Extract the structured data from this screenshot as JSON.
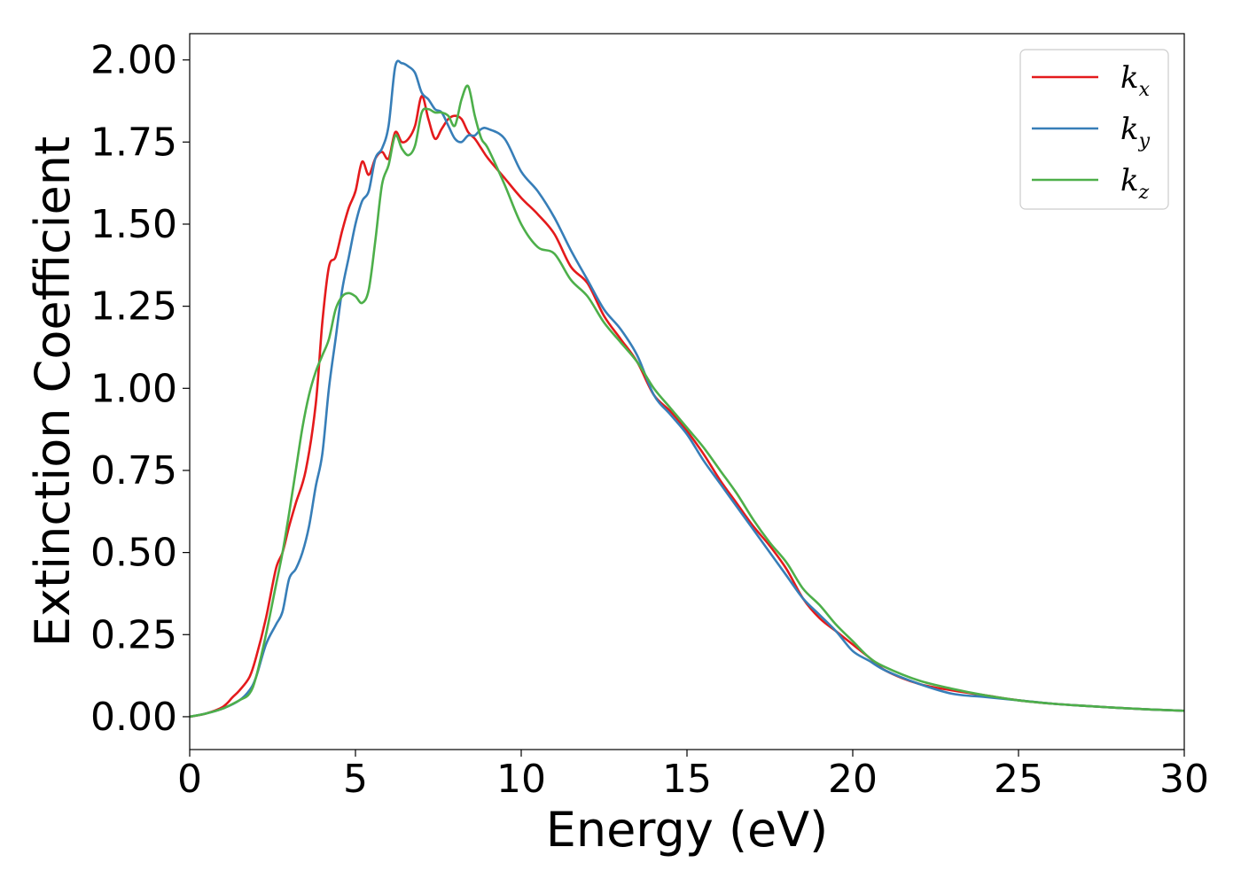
{
  "chart_data": {
    "type": "line",
    "xlabel": "Energy (eV)",
    "ylabel": "Extinction Coefficient",
    "xlim": [
      0,
      30
    ],
    "ylim": [
      -0.1,
      2.08
    ],
    "xticks": [
      0,
      5,
      10,
      15,
      20,
      25,
      30
    ],
    "xtick_labels": [
      "0",
      "5",
      "10",
      "15",
      "20",
      "25",
      "30"
    ],
    "yticks": [
      0.0,
      0.25,
      0.5,
      0.75,
      1.0,
      1.25,
      1.5,
      1.75,
      2.0
    ],
    "ytick_labels": [
      "0.00",
      "0.25",
      "0.50",
      "0.75",
      "1.00",
      "1.25",
      "1.50",
      "1.75",
      "2.00"
    ],
    "grid": false,
    "legend_position": "top-right",
    "series": [
      {
        "name": "k_x",
        "legend_base": "k",
        "legend_sub": "x",
        "color": "#e41a1c",
        "x": [
          0,
          0.5,
          1.0,
          1.3,
          1.5,
          1.8,
          2.0,
          2.3,
          2.6,
          2.8,
          3.0,
          3.2,
          3.5,
          3.8,
          4.0,
          4.2,
          4.4,
          4.6,
          4.8,
          5.0,
          5.2,
          5.4,
          5.6,
          5.8,
          6.0,
          6.2,
          6.4,
          6.6,
          6.8,
          7.0,
          7.2,
          7.4,
          7.6,
          7.8,
          8.0,
          8.2,
          8.4,
          8.6,
          8.8,
          9.0,
          9.5,
          10.0,
          10.5,
          11.0,
          11.5,
          12.0,
          12.5,
          13.0,
          13.5,
          14.0,
          14.5,
          15.0,
          15.5,
          16.0,
          16.5,
          17.0,
          17.5,
          18.0,
          18.5,
          19.0,
          19.5,
          20.0,
          20.5,
          21.0,
          22.0,
          23.0,
          24.0,
          25.0,
          26.0,
          27.0,
          28.0,
          29.0,
          30.0
        ],
        "y": [
          0.0,
          0.01,
          0.03,
          0.06,
          0.08,
          0.12,
          0.18,
          0.3,
          0.45,
          0.5,
          0.58,
          0.65,
          0.75,
          0.95,
          1.2,
          1.37,
          1.4,
          1.48,
          1.55,
          1.6,
          1.69,
          1.65,
          1.7,
          1.72,
          1.7,
          1.78,
          1.75,
          1.76,
          1.8,
          1.89,
          1.82,
          1.76,
          1.79,
          1.82,
          1.83,
          1.82,
          1.78,
          1.76,
          1.73,
          1.7,
          1.64,
          1.58,
          1.53,
          1.47,
          1.37,
          1.32,
          1.22,
          1.15,
          1.08,
          0.98,
          0.93,
          0.87,
          0.8,
          0.72,
          0.65,
          0.58,
          0.52,
          0.45,
          0.36,
          0.3,
          0.26,
          0.22,
          0.18,
          0.14,
          0.1,
          0.08,
          0.065,
          0.05,
          0.04,
          0.033,
          0.027,
          0.022,
          0.018
        ]
      },
      {
        "name": "k_y",
        "legend_base": "k",
        "legend_sub": "y",
        "color": "#377eb8",
        "x": [
          0,
          0.5,
          1.0,
          1.5,
          1.8,
          2.0,
          2.3,
          2.6,
          2.8,
          3.0,
          3.2,
          3.4,
          3.6,
          3.8,
          4.0,
          4.2,
          4.4,
          4.6,
          4.8,
          5.0,
          5.2,
          5.4,
          5.6,
          5.8,
          6.0,
          6.2,
          6.4,
          6.6,
          6.8,
          7.0,
          7.2,
          7.4,
          7.6,
          7.8,
          8.0,
          8.2,
          8.4,
          8.6,
          8.8,
          9.0,
          9.5,
          10.0,
          10.5,
          11.0,
          11.5,
          12.0,
          12.5,
          13.0,
          13.5,
          14.0,
          14.5,
          15.0,
          15.5,
          16.0,
          16.5,
          17.0,
          17.5,
          18.0,
          18.5,
          19.0,
          19.5,
          20.0,
          20.5,
          21.0,
          22.0,
          23.0,
          24.0,
          25.0,
          26.0,
          27.0,
          28.0,
          29.0,
          30.0
        ],
        "y": [
          0.0,
          0.01,
          0.025,
          0.05,
          0.08,
          0.12,
          0.22,
          0.28,
          0.32,
          0.42,
          0.45,
          0.5,
          0.58,
          0.7,
          0.8,
          1.0,
          1.15,
          1.3,
          1.4,
          1.5,
          1.57,
          1.6,
          1.7,
          1.73,
          1.8,
          1.98,
          1.99,
          1.98,
          1.96,
          1.9,
          1.88,
          1.85,
          1.84,
          1.8,
          1.76,
          1.75,
          1.77,
          1.77,
          1.79,
          1.79,
          1.76,
          1.66,
          1.6,
          1.52,
          1.42,
          1.33,
          1.24,
          1.18,
          1.1,
          0.98,
          0.92,
          0.86,
          0.78,
          0.71,
          0.64,
          0.57,
          0.5,
          0.43,
          0.36,
          0.31,
          0.26,
          0.2,
          0.17,
          0.14,
          0.1,
          0.07,
          0.06,
          0.05,
          0.04,
          0.033,
          0.027,
          0.022,
          0.018
        ]
      },
      {
        "name": "k_z",
        "legend_base": "k",
        "legend_sub": "z",
        "color": "#4daf4a",
        "x": [
          0,
          0.5,
          1.0,
          1.5,
          1.8,
          2.0,
          2.3,
          2.6,
          2.8,
          3.0,
          3.2,
          3.4,
          3.6,
          3.8,
          4.0,
          4.2,
          4.4,
          4.6,
          4.8,
          5.0,
          5.2,
          5.4,
          5.6,
          5.8,
          6.0,
          6.2,
          6.4,
          6.6,
          6.8,
          7.0,
          7.2,
          7.4,
          7.6,
          7.8,
          8.0,
          8.2,
          8.4,
          8.6,
          8.8,
          9.0,
          9.5,
          10.0,
          10.5,
          11.0,
          11.5,
          12.0,
          12.5,
          13.0,
          13.5,
          14.0,
          14.5,
          15.0,
          15.5,
          16.0,
          16.5,
          17.0,
          17.5,
          18.0,
          18.5,
          19.0,
          19.5,
          20.0,
          20.5,
          21.0,
          22.0,
          23.0,
          24.0,
          25.0,
          26.0,
          27.0,
          28.0,
          29.0,
          30.0
        ],
        "y": [
          0.0,
          0.01,
          0.025,
          0.05,
          0.07,
          0.12,
          0.25,
          0.4,
          0.5,
          0.62,
          0.75,
          0.88,
          0.98,
          1.05,
          1.1,
          1.15,
          1.24,
          1.28,
          1.29,
          1.28,
          1.26,
          1.3,
          1.45,
          1.62,
          1.68,
          1.77,
          1.73,
          1.71,
          1.74,
          1.84,
          1.85,
          1.84,
          1.84,
          1.83,
          1.8,
          1.88,
          1.92,
          1.83,
          1.76,
          1.73,
          1.62,
          1.5,
          1.43,
          1.41,
          1.33,
          1.28,
          1.2,
          1.14,
          1.08,
          1.0,
          0.94,
          0.88,
          0.82,
          0.75,
          0.68,
          0.6,
          0.53,
          0.47,
          0.39,
          0.34,
          0.28,
          0.23,
          0.18,
          0.15,
          0.11,
          0.085,
          0.065,
          0.05,
          0.04,
          0.033,
          0.027,
          0.022,
          0.018
        ]
      }
    ]
  }
}
